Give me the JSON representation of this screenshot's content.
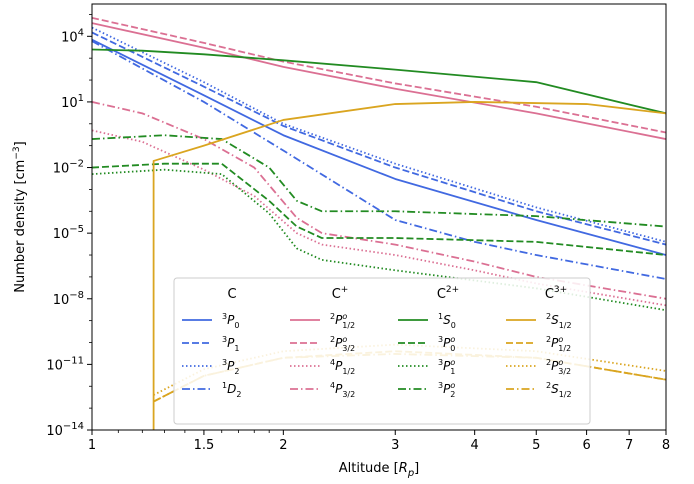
{
  "chart_data": {
    "type": "line",
    "xlabel": "Altitude [R_p]",
    "ylabel": "Number density [cm^-3]",
    "x_scale": "log",
    "y_scale": "log",
    "xlim": [
      1,
      8
    ],
    "ylim": [
      1e-14,
      300000.0
    ],
    "x_tick_labels": [
      "1",
      "1.5",
      "2",
      "3",
      "4",
      "5",
      "6",
      "7",
      "8"
    ],
    "x_ticks": [
      1,
      1.5,
      2,
      3,
      4,
      5,
      6,
      7,
      8
    ],
    "y_tick_labels": [
      "10^-14",
      "10^-11",
      "10^-8",
      "10^-5",
      "10^-2",
      "10^1",
      "10^4"
    ],
    "y_ticks": [
      1e-14,
      1e-11,
      1e-08,
      1e-05,
      0.01,
      10,
      10000.0
    ],
    "legend_position": "lower-center",
    "legend_columns": [
      {
        "header": "C",
        "header_sup": ""
      },
      {
        "header": "C",
        "header_sup": "+"
      },
      {
        "header": "C",
        "header_sup": "2+"
      },
      {
        "header": "C",
        "header_sup": "3+"
      }
    ],
    "colors": {
      "C": "#4169e1",
      "C+": "#db7093",
      "C2+": "#228b22",
      "C3+": "#daa520"
    },
    "series": [
      {
        "name": "3P0",
        "species": "C",
        "style": "solid",
        "label_pre": "3",
        "label_main": "P",
        "label_sub": "0",
        "label_sup": "",
        "x": [
          1,
          1.5,
          2,
          3,
          5,
          8
        ],
        "y": [
          7000,
          20,
          0.3,
          0.003,
          4e-05,
          1e-06
        ]
      },
      {
        "name": "3P1",
        "species": "C",
        "style": "dashed",
        "label_pre": "3",
        "label_main": "P",
        "label_sub": "1",
        "label_sup": "",
        "x": [
          1,
          1.5,
          2,
          3,
          5,
          8
        ],
        "y": [
          15000,
          50,
          0.8,
          0.01,
          0.0001,
          3e-06
        ]
      },
      {
        "name": "3P2",
        "species": "C",
        "style": "dotted",
        "label_pre": "3",
        "label_main": "P",
        "label_sub": "2",
        "label_sup": "",
        "x": [
          1,
          1.5,
          2,
          3,
          5,
          8
        ],
        "y": [
          25000,
          80,
          1,
          0.015,
          0.00015,
          4e-06
        ]
      },
      {
        "name": "1D2",
        "species": "C",
        "style": "dashdot",
        "label_pre": "1",
        "label_main": "D",
        "label_sub": "2",
        "label_sup": "",
        "x": [
          1,
          1.5,
          2,
          3,
          4,
          5,
          8
        ],
        "y": [
          6000,
          10,
          0.06,
          4e-05,
          4e-06,
          1e-06,
          8e-08
        ]
      },
      {
        "name": "2P1/2",
        "species": "C+",
        "style": "solid",
        "label_pre": "2",
        "label_main": "P",
        "label_sub": "1/2",
        "label_sup": "o",
        "x": [
          1,
          1.5,
          2,
          3,
          5,
          8
        ],
        "y": [
          40000,
          3000,
          400,
          40,
          3,
          0.2
        ]
      },
      {
        "name": "2P3/2",
        "species": "C+",
        "style": "dashed",
        "label_pre": "2",
        "label_main": "P",
        "label_sub": "3/2",
        "label_sup": "o",
        "x": [
          1,
          1.5,
          2,
          3,
          5,
          8
        ],
        "y": [
          70000,
          5000,
          700,
          70,
          6,
          0.4
        ]
      },
      {
        "name": "4P1/2",
        "species": "C+",
        "style": "dotted",
        "label_pre": "4",
        "label_main": "P",
        "label_sub": "1/2",
        "label_sup": "",
        "x": [
          1,
          1.2,
          1.5,
          1.8,
          2.1,
          2.3,
          3,
          4,
          5,
          8
        ],
        "y": [
          0.5,
          0.15,
          0.008,
          0.0005,
          1e-05,
          3e-06,
          1e-06,
          2e-07,
          5e-08,
          5e-09
        ]
      },
      {
        "name": "4P3/2",
        "species": "C+",
        "style": "dashdot",
        "label_pre": "4",
        "label_main": "P",
        "label_sub": "3/2",
        "label_sup": "",
        "x": [
          1,
          1.2,
          1.5,
          1.8,
          2.1,
          2.3,
          3,
          4,
          5,
          8
        ],
        "y": [
          10,
          3,
          0.2,
          0.01,
          5e-05,
          1e-05,
          3e-06,
          5e-07,
          1e-07,
          1e-08
        ]
      },
      {
        "name": "1S0",
        "species": "C2+",
        "style": "solid",
        "label_pre": "1",
        "label_main": "S",
        "label_sub": "0",
        "label_sup": "",
        "x": [
          1,
          1.2,
          1.5,
          2,
          3,
          5,
          8
        ],
        "y": [
          2500,
          2200,
          1500,
          800,
          300,
          80,
          3
        ]
      },
      {
        "name": "3P0o",
        "species": "C2+",
        "style": "dashed",
        "label_pre": "3",
        "label_main": "P",
        "label_sub": "0",
        "label_sup": "o",
        "x": [
          1,
          1.3,
          1.6,
          1.9,
          2.1,
          2.3,
          3,
          5,
          8
        ],
        "y": [
          0.01,
          0.015,
          0.015,
          0.0003,
          2e-05,
          6e-06,
          6e-06,
          4e-06,
          1e-06
        ]
      },
      {
        "name": "3P1o",
        "species": "C2+",
        "style": "dotted",
        "label_pre": "3",
        "label_main": "P",
        "label_sub": "1",
        "label_sup": "o",
        "x": [
          1,
          1.3,
          1.6,
          1.9,
          2.1,
          2.3,
          3,
          5,
          8
        ],
        "y": [
          0.005,
          0.008,
          0.005,
          8e-05,
          2e-06,
          6e-07,
          2e-07,
          3e-08,
          3e-09
        ]
      },
      {
        "name": "3P2o",
        "species": "C2+",
        "style": "dashdot",
        "label_pre": "3",
        "label_main": "P",
        "label_sub": "2",
        "label_sup": "o",
        "x": [
          1,
          1.3,
          1.6,
          1.9,
          2.1,
          2.3,
          3,
          5,
          8
        ],
        "y": [
          0.2,
          0.3,
          0.2,
          0.01,
          0.0003,
          0.0001,
          0.0001,
          6e-05,
          2e-05
        ]
      },
      {
        "name": "2S1/2",
        "species": "C3+",
        "style": "solid",
        "label_pre": "2",
        "label_main": "S",
        "label_sub": "1/2",
        "label_sup": "",
        "x": [
          1.25,
          1.25,
          1.5,
          2,
          3,
          4,
          6,
          8
        ],
        "y": [
          1e-14,
          0.02,
          0.1,
          1.5,
          8,
          10,
          8,
          3
        ]
      },
      {
        "name": "2P1/2 (C3+)",
        "species": "C3+",
        "style": "dashed",
        "label_pre": "2",
        "label_main": "P",
        "label_sub": "1/2",
        "label_sup": "o",
        "x": [
          1.25,
          1.5,
          2,
          3,
          5,
          8
        ],
        "y": [
          2e-13,
          3e-12,
          2e-11,
          4e-11,
          2e-11,
          2e-12
        ]
      },
      {
        "name": "2P3/2 (C3+)",
        "species": "C3+",
        "style": "dotted",
        "label_pre": "2",
        "label_main": "P",
        "label_sub": "3/2",
        "label_sup": "o",
        "x": [
          1.25,
          1.5,
          2,
          3,
          5,
          8
        ],
        "y": [
          4e-13,
          6e-12,
          4e-11,
          8e-11,
          4e-11,
          5e-12
        ]
      },
      {
        "name": "2S1/2 (C3+)",
        "species": "C3+",
        "style": "dashdot",
        "label_pre": "2",
        "label_main": "S",
        "label_sub": "1/2",
        "label_sup": "",
        "x": [
          1.25,
          1.5,
          2,
          3,
          5,
          8
        ],
        "y": [
          2e-13,
          3e-12,
          2e-11,
          3e-11,
          2e-11,
          2e-12
        ]
      }
    ]
  }
}
